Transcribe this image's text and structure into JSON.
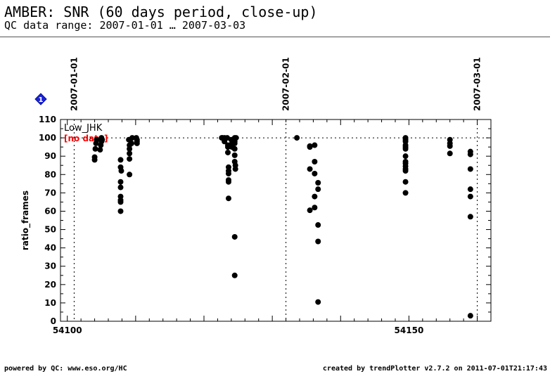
{
  "header": {
    "title": "AMBER: SNR (60 days period, close-up)",
    "subtitle": "QC data range: 2007-01-01 … 2007-03-03"
  },
  "footer": {
    "left": "powered by QC: www.eso.org/HC",
    "right": "created by trendPlotter v2.7.2 on 2011-07-01T21:17:43"
  },
  "marker": {
    "label": "1",
    "color": "#1a22d8"
  },
  "chart_data": {
    "type": "scatter",
    "ylabel": "ratio_frames",
    "xlabel": "",
    "xlim": [
      54099,
      54162
    ],
    "ylim": [
      0,
      110
    ],
    "grid": false,
    "y_ticks": [
      0,
      10,
      20,
      30,
      40,
      50,
      60,
      70,
      80,
      90,
      100,
      110
    ],
    "x_tick_labels": [
      {
        "value": 54100,
        "label": "54100"
      },
      {
        "value": 54150,
        "label": "54150"
      }
    ],
    "reference_line": 100,
    "date_markers": [
      {
        "value": 54101,
        "label": "2007-01-01"
      },
      {
        "value": 54132,
        "label": "2007-02-01"
      },
      {
        "value": 54160,
        "label": "2007-03-01"
      }
    ],
    "legend": {
      "series": "Low_JHK",
      "note": "[no data]",
      "note_color": "#ff0000",
      "placement": "top-left"
    },
    "series": [
      {
        "name": "Low_JHK",
        "color": "#000000",
        "points": [
          [
            54104.0,
            88
          ],
          [
            54104.0,
            89.5
          ],
          [
            54104.1,
            94
          ],
          [
            54104.2,
            97
          ],
          [
            54104.3,
            99
          ],
          [
            54104.8,
            93.5
          ],
          [
            54104.9,
            96
          ],
          [
            54105.0,
            98
          ],
          [
            54105.0,
            100
          ],
          [
            54105.1,
            99
          ],
          [
            54107.8,
            88
          ],
          [
            54107.8,
            84
          ],
          [
            54107.8,
            76
          ],
          [
            54107.8,
            73
          ],
          [
            54107.8,
            68
          ],
          [
            54107.8,
            66
          ],
          [
            54107.8,
            65
          ],
          [
            54107.8,
            60
          ],
          [
            54107.9,
            82
          ],
          [
            54109.0,
            99
          ],
          [
            54109.1,
            96
          ],
          [
            54109.1,
            94
          ],
          [
            54109.1,
            91.5
          ],
          [
            54109.1,
            88.5
          ],
          [
            54109.1,
            80
          ],
          [
            54109.4,
            97
          ],
          [
            54109.5,
            100
          ],
          [
            54110.1,
            100
          ],
          [
            54110.2,
            99
          ],
          [
            54110.2,
            98
          ],
          [
            54110.2,
            97
          ],
          [
            54122.6,
            100
          ],
          [
            54122.7,
            100
          ],
          [
            54123.0,
            100
          ],
          [
            54123.0,
            98
          ],
          [
            54123.4,
            100
          ],
          [
            54123.5,
            96
          ],
          [
            54123.5,
            95
          ],
          [
            54123.5,
            92
          ],
          [
            54123.6,
            84
          ],
          [
            54123.6,
            82
          ],
          [
            54123.6,
            80.5
          ],
          [
            54123.6,
            77
          ],
          [
            54123.6,
            76
          ],
          [
            54123.6,
            67
          ],
          [
            54124.0,
            99
          ],
          [
            54124.1,
            97
          ],
          [
            54124.1,
            95
          ],
          [
            54124.5,
            100
          ],
          [
            54124.5,
            98
          ],
          [
            54124.5,
            97
          ],
          [
            54124.5,
            94
          ],
          [
            54124.5,
            90.5
          ],
          [
            54124.5,
            87
          ],
          [
            54124.6,
            85
          ],
          [
            54124.6,
            83
          ],
          [
            54124.7,
            100
          ],
          [
            54124.5,
            46
          ],
          [
            54124.5,
            25
          ],
          [
            54133.6,
            100
          ],
          [
            54135.5,
            95.5
          ],
          [
            54135.5,
            95
          ],
          [
            54135.5,
            83
          ],
          [
            54135.5,
            60.5
          ],
          [
            54136.2,
            96
          ],
          [
            54136.2,
            87
          ],
          [
            54136.2,
            80.5
          ],
          [
            54136.2,
            68
          ],
          [
            54136.2,
            62
          ],
          [
            54136.7,
            75.5
          ],
          [
            54136.7,
            72
          ],
          [
            54136.7,
            52.5
          ],
          [
            54136.7,
            43.5
          ],
          [
            54136.7,
            10.5
          ],
          [
            54149.5,
            100
          ],
          [
            54149.5,
            99
          ],
          [
            54149.5,
            98
          ],
          [
            54149.5,
            96
          ],
          [
            54149.5,
            95
          ],
          [
            54149.5,
            94
          ],
          [
            54149.5,
            90
          ],
          [
            54149.5,
            87
          ],
          [
            54149.5,
            86
          ],
          [
            54149.5,
            84.5
          ],
          [
            54149.5,
            83
          ],
          [
            54149.5,
            82
          ],
          [
            54149.5,
            76
          ],
          [
            54149.5,
            70
          ],
          [
            54156.0,
            99
          ],
          [
            54156.0,
            97
          ],
          [
            54156.0,
            95.5
          ],
          [
            54156.0,
            91.5
          ],
          [
            54159.0,
            92.5
          ],
          [
            54159.0,
            91
          ],
          [
            54159.0,
            83
          ],
          [
            54159.0,
            72
          ],
          [
            54159.0,
            68
          ],
          [
            54159.0,
            57
          ],
          [
            54159.0,
            3
          ]
        ]
      }
    ]
  }
}
